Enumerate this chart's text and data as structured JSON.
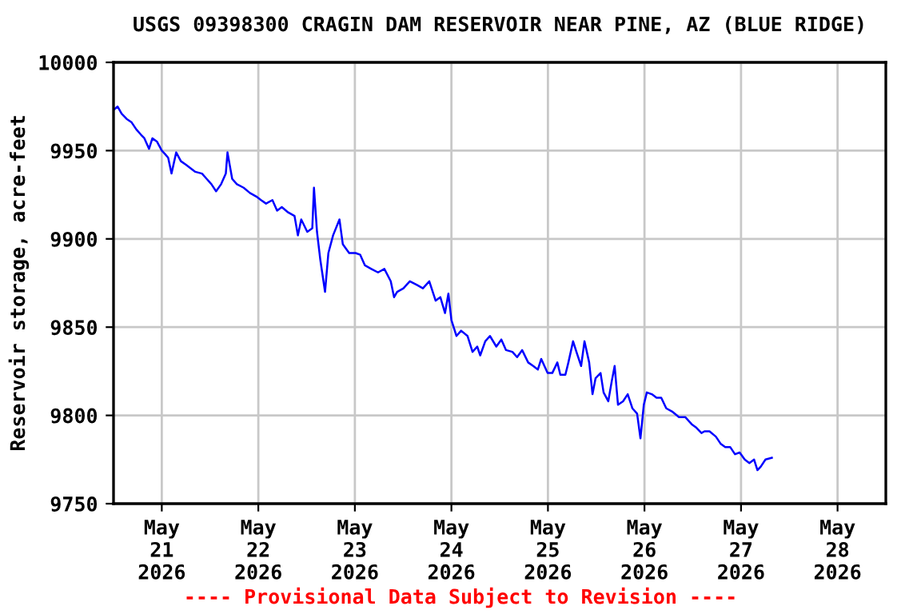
{
  "chart_data": {
    "type": "line",
    "title": "USGS 09398300 CRAGIN DAM RESERVOIR NEAR PINE, AZ (BLUE RIDGE)",
    "ylabel": "Reservoir storage, acre-feet",
    "annotations": [
      "---- Provisional Data Subject to Revision ----"
    ],
    "grid": true,
    "marker": "none",
    "line_style": "solid",
    "xlim": [
      "2026-05-20T12:00",
      "2026-05-28T12:00"
    ],
    "xticks": [
      {
        "value": "2026-05-21",
        "label": "May\n21\n2026"
      },
      {
        "value": "2026-05-22",
        "label": "May\n22\n2026"
      },
      {
        "value": "2026-05-23",
        "label": "May\n23\n2026"
      },
      {
        "value": "2026-05-24",
        "label": "May\n24\n2026"
      },
      {
        "value": "2026-05-25",
        "label": "May\n25\n2026"
      },
      {
        "value": "2026-05-26",
        "label": "May\n26\n2026"
      },
      {
        "value": "2026-05-27",
        "label": "May\n27\n2026"
      },
      {
        "value": "2026-05-28",
        "label": "May\n28\n2026"
      }
    ],
    "ylim": [
      9750,
      10000
    ],
    "yticks": [
      9750,
      9800,
      9850,
      9900,
      9950,
      10000
    ],
    "series": [
      {
        "color": "#0000ff",
        "x": [
          "2026-05-20T12:00",
          "2026-05-20T13:00",
          "2026-05-20T14:00",
          "2026-05-20T15:15",
          "2026-05-20T16:30",
          "2026-05-20T17:40",
          "2026-05-20T18:50",
          "2026-05-20T19:40",
          "2026-05-20T20:50",
          "2026-05-20T21:40",
          "2026-05-20T22:50",
          "2026-05-21T00:00",
          "2026-05-21T00:50",
          "2026-05-21T01:35",
          "2026-05-21T02:25",
          "2026-05-21T03:35",
          "2026-05-21T04:45",
          "2026-05-21T06:00",
          "2026-05-21T07:10",
          "2026-05-21T08:20",
          "2026-05-21T10:00",
          "2026-05-21T11:10",
          "2026-05-21T12:20",
          "2026-05-21T13:30",
          "2026-05-21T14:45",
          "2026-05-21T15:55",
          "2026-05-21T16:20",
          "2026-05-21T17:30",
          "2026-05-21T18:40",
          "2026-05-21T20:20",
          "2026-05-21T21:55",
          "2026-05-21T23:30",
          "2026-05-22T00:40",
          "2026-05-22T01:55",
          "2026-05-22T03:30",
          "2026-05-22T04:40",
          "2026-05-22T05:50",
          "2026-05-22T07:25",
          "2026-05-22T09:00",
          "2026-05-22T09:50",
          "2026-05-22T10:40",
          "2026-05-22T12:10",
          "2026-05-22T13:25",
          "2026-05-22T13:50",
          "2026-05-22T14:35",
          "2026-05-22T15:25",
          "2026-05-22T16:35",
          "2026-05-22T17:25",
          "2026-05-22T18:35",
          "2026-05-22T20:10",
          "2026-05-22T21:00",
          "2026-05-22T22:35",
          "2026-05-23T00:10",
          "2026-05-23T01:20",
          "2026-05-23T02:30",
          "2026-05-23T04:05",
          "2026-05-23T05:45",
          "2026-05-23T07:20",
          "2026-05-23T08:55",
          "2026-05-23T09:45",
          "2026-05-23T10:30",
          "2026-05-23T12:05",
          "2026-05-23T13:40",
          "2026-05-23T15:20",
          "2026-05-23T16:55",
          "2026-05-23T18:30",
          "2026-05-23T20:05",
          "2026-05-23T21:15",
          "2026-05-23T22:25",
          "2026-05-23T23:15",
          "2026-05-24T00:00",
          "2026-05-24T01:15",
          "2026-05-24T02:25",
          "2026-05-24T04:00",
          "2026-05-24T05:15",
          "2026-05-24T06:25",
          "2026-05-24T07:10",
          "2026-05-24T08:25",
          "2026-05-24T09:35",
          "2026-05-24T11:10",
          "2026-05-24T12:25",
          "2026-05-24T13:35",
          "2026-05-24T15:10",
          "2026-05-24T16:20",
          "2026-05-24T17:35",
          "2026-05-24T19:05",
          "2026-05-24T20:20",
          "2026-05-24T21:30",
          "2026-05-24T22:20",
          "2026-05-24T23:55",
          "2026-05-25T01:05",
          "2026-05-25T02:20",
          "2026-05-25T03:05",
          "2026-05-25T04:20",
          "2026-05-25T05:05",
          "2026-05-25T06:15",
          "2026-05-25T07:05",
          "2026-05-25T08:15",
          "2026-05-25T09:05",
          "2026-05-25T10:15",
          "2026-05-25T11:05",
          "2026-05-25T11:50",
          "2026-05-25T13:05",
          "2026-05-25T13:50",
          "2026-05-25T15:00",
          "2026-05-25T15:50",
          "2026-05-25T16:35",
          "2026-05-25T17:25",
          "2026-05-25T18:40",
          "2026-05-25T19:50",
          "2026-05-25T21:00",
          "2026-05-25T22:10",
          "2026-05-25T23:00",
          "2026-05-25T23:50",
          "2026-05-26T00:35",
          "2026-05-26T01:50",
          "2026-05-26T03:00",
          "2026-05-26T04:10",
          "2026-05-26T05:25",
          "2026-05-26T07:00",
          "2026-05-26T08:35",
          "2026-05-26T10:10",
          "2026-05-26T11:45",
          "2026-05-26T12:55",
          "2026-05-26T14:10",
          "2026-05-26T14:55",
          "2026-05-26T16:10",
          "2026-05-26T17:45",
          "2026-05-26T18:55",
          "2026-05-26T20:05",
          "2026-05-26T21:20",
          "2026-05-26T22:30",
          "2026-05-26T23:40",
          "2026-05-27T00:55",
          "2026-05-27T02:05",
          "2026-05-27T03:15",
          "2026-05-27T04:05",
          "2026-05-27T04:55",
          "2026-05-27T06:05",
          "2026-05-27T07:40"
        ],
        "values": [
          9973,
          9975,
          9971,
          9968,
          9966,
          9962,
          9959,
          9957,
          9951,
          9957,
          9955,
          9950,
          9948,
          9946,
          9937,
          9949,
          9944,
          9942,
          9940,
          9938,
          9937,
          9934,
          9931,
          9927,
          9931,
          9937,
          9949,
          9934,
          9931,
          9929,
          9926,
          9924,
          9922,
          9920,
          9922,
          9916,
          9918,
          9915,
          9913,
          9902,
          9911,
          9904,
          9906,
          9929,
          9904,
          9888,
          9870,
          9892,
          9902,
          9911,
          9897,
          9892,
          9892,
          9891,
          9885,
          9883,
          9881,
          9883,
          9876,
          9867,
          9870,
          9872,
          9876,
          9874,
          9872,
          9876,
          9865,
          9867,
          9858,
          9869,
          9854,
          9845,
          9848,
          9845,
          9836,
          9839,
          9834,
          9842,
          9845,
          9839,
          9843,
          9837,
          9836,
          9833,
          9837,
          9830,
          9828,
          9826,
          9832,
          9824,
          9824,
          9830,
          9823,
          9823,
          9830,
          9842,
          9836,
          9828,
          9842,
          9830,
          9812,
          9821,
          9824,
          9813,
          9808,
          9819,
          9828,
          9806,
          9808,
          9812,
          9804,
          9801,
          9787,
          9806,
          9813,
          9812,
          9810,
          9810,
          9804,
          9802,
          9799,
          9799,
          9795,
          9793,
          9790,
          9791,
          9791,
          9788,
          9784,
          9782,
          9782,
          9778,
          9779,
          9775,
          9773,
          9775,
          9769,
          9771,
          9775,
          9776
        ]
      }
    ]
  }
}
